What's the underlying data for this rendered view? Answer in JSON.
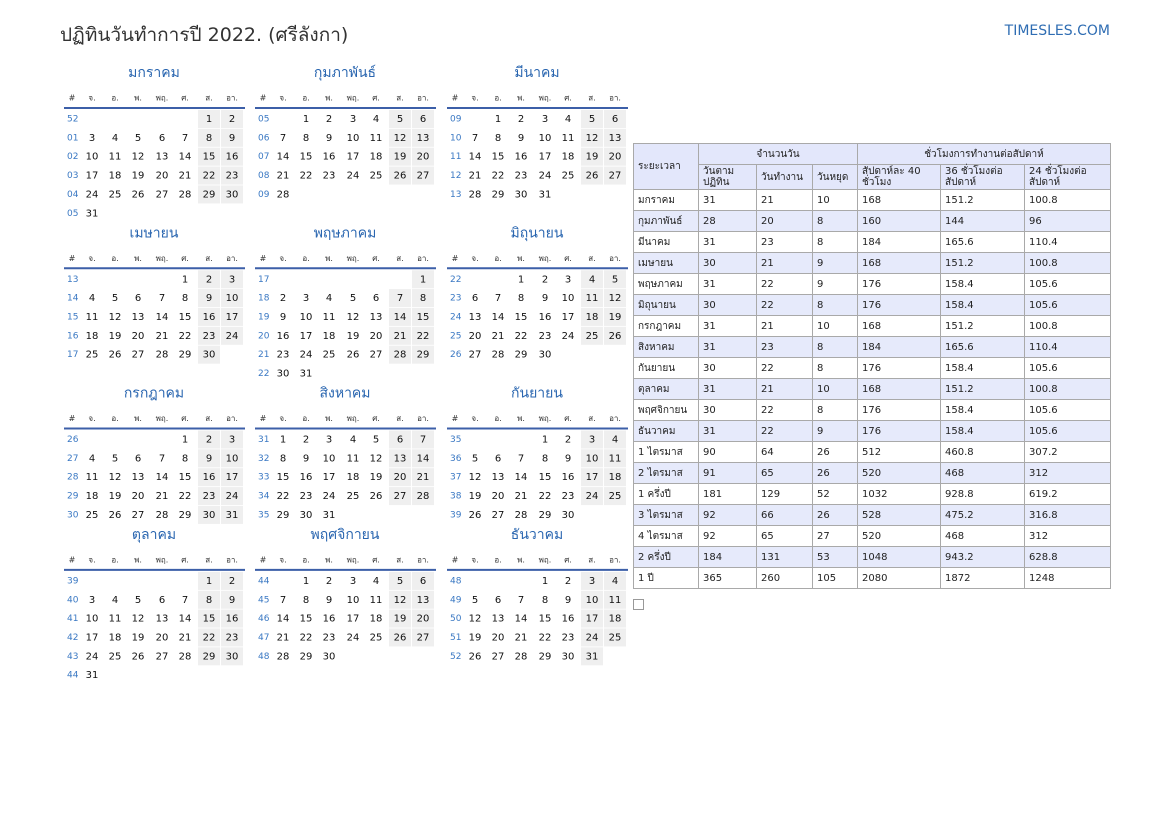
{
  "header": {
    "title": "ปฏิทินวันทำการปี 2022. (ศรีลังกา)",
    "site": "TIMESLES.COM"
  },
  "calendar": {
    "weekday_headers": [
      "#",
      "จ.",
      "อ.",
      "พ.",
      "พฤ.",
      "ศ.",
      "ส.",
      "อา."
    ],
    "months": [
      {
        "name": "มกราคม",
        "weeks": [
          [
            "52",
            null,
            null,
            null,
            null,
            null,
            1,
            2
          ],
          [
            "01",
            3,
            4,
            5,
            6,
            7,
            8,
            9
          ],
          [
            "02",
            10,
            11,
            12,
            13,
            14,
            15,
            16
          ],
          [
            "03",
            17,
            18,
            19,
            20,
            21,
            22,
            23
          ],
          [
            "04",
            24,
            25,
            26,
            27,
            28,
            29,
            30
          ],
          [
            "05",
            31,
            null,
            null,
            null,
            null,
            null,
            null
          ]
        ]
      },
      {
        "name": "กุมภาพันธ์",
        "weeks": [
          [
            "05",
            null,
            1,
            2,
            3,
            4,
            5,
            6
          ],
          [
            "06",
            7,
            8,
            9,
            10,
            11,
            12,
            13
          ],
          [
            "07",
            14,
            15,
            16,
            17,
            18,
            19,
            20
          ],
          [
            "08",
            21,
            22,
            23,
            24,
            25,
            26,
            27
          ],
          [
            "09",
            28,
            null,
            null,
            null,
            null,
            null,
            null
          ]
        ]
      },
      {
        "name": "มีนาคม",
        "weeks": [
          [
            "09",
            null,
            1,
            2,
            3,
            4,
            5,
            6
          ],
          [
            "10",
            7,
            8,
            9,
            10,
            11,
            12,
            13
          ],
          [
            "11",
            14,
            15,
            16,
            17,
            18,
            19,
            20
          ],
          [
            "12",
            21,
            22,
            23,
            24,
            25,
            26,
            27
          ],
          [
            "13",
            28,
            29,
            30,
            31,
            null,
            null,
            null
          ]
        ]
      },
      {
        "name": "เมษายน",
        "weeks": [
          [
            "13",
            null,
            null,
            null,
            null,
            1,
            2,
            3
          ],
          [
            "14",
            4,
            5,
            6,
            7,
            8,
            9,
            10
          ],
          [
            "15",
            11,
            12,
            13,
            14,
            15,
            16,
            17
          ],
          [
            "16",
            18,
            19,
            20,
            21,
            22,
            23,
            24
          ],
          [
            "17",
            25,
            26,
            27,
            28,
            29,
            30,
            null
          ]
        ]
      },
      {
        "name": "พฤษภาคม",
        "weeks": [
          [
            "17",
            null,
            null,
            null,
            null,
            null,
            null,
            1
          ],
          [
            "18",
            2,
            3,
            4,
            5,
            6,
            7,
            8
          ],
          [
            "19",
            9,
            10,
            11,
            12,
            13,
            14,
            15
          ],
          [
            "20",
            16,
            17,
            18,
            19,
            20,
            21,
            22
          ],
          [
            "21",
            23,
            24,
            25,
            26,
            27,
            28,
            29
          ],
          [
            "22",
            30,
            31,
            null,
            null,
            null,
            null,
            null
          ]
        ]
      },
      {
        "name": "มิถุนายน",
        "weeks": [
          [
            "22",
            null,
            null,
            1,
            2,
            3,
            4,
            5
          ],
          [
            "23",
            6,
            7,
            8,
            9,
            10,
            11,
            12
          ],
          [
            "24",
            13,
            14,
            15,
            16,
            17,
            18,
            19
          ],
          [
            "25",
            20,
            21,
            22,
            23,
            24,
            25,
            26
          ],
          [
            "26",
            27,
            28,
            29,
            30,
            null,
            null,
            null
          ]
        ]
      },
      {
        "name": "กรกฎาคม",
        "weeks": [
          [
            "26",
            null,
            null,
            null,
            null,
            1,
            2,
            3
          ],
          [
            "27",
            4,
            5,
            6,
            7,
            8,
            9,
            10
          ],
          [
            "28",
            11,
            12,
            13,
            14,
            15,
            16,
            17
          ],
          [
            "29",
            18,
            19,
            20,
            21,
            22,
            23,
            24
          ],
          [
            "30",
            25,
            26,
            27,
            28,
            29,
            30,
            31
          ]
        ]
      },
      {
        "name": "สิงหาคม",
        "weeks": [
          [
            "31",
            1,
            2,
            3,
            4,
            5,
            6,
            7
          ],
          [
            "32",
            8,
            9,
            10,
            11,
            12,
            13,
            14
          ],
          [
            "33",
            15,
            16,
            17,
            18,
            19,
            20,
            21
          ],
          [
            "34",
            22,
            23,
            24,
            25,
            26,
            27,
            28
          ],
          [
            "35",
            29,
            30,
            31,
            null,
            null,
            null,
            null
          ]
        ]
      },
      {
        "name": "กันยายน",
        "weeks": [
          [
            "35",
            null,
            null,
            null,
            1,
            2,
            3,
            4
          ],
          [
            "36",
            5,
            6,
            7,
            8,
            9,
            10,
            11
          ],
          [
            "37",
            12,
            13,
            14,
            15,
            16,
            17,
            18
          ],
          [
            "38",
            19,
            20,
            21,
            22,
            23,
            24,
            25
          ],
          [
            "39",
            26,
            27,
            28,
            29,
            30,
            null,
            null
          ]
        ]
      },
      {
        "name": "ตุลาคม",
        "weeks": [
          [
            "39",
            null,
            null,
            null,
            null,
            null,
            1,
            2
          ],
          [
            "40",
            3,
            4,
            5,
            6,
            7,
            8,
            9
          ],
          [
            "41",
            10,
            11,
            12,
            13,
            14,
            15,
            16
          ],
          [
            "42",
            17,
            18,
            19,
            20,
            21,
            22,
            23
          ],
          [
            "43",
            24,
            25,
            26,
            27,
            28,
            29,
            30
          ],
          [
            "44",
            31,
            null,
            null,
            null,
            null,
            null,
            null
          ]
        ]
      },
      {
        "name": "พฤศจิกายน",
        "weeks": [
          [
            "44",
            null,
            1,
            2,
            3,
            4,
            5,
            6
          ],
          [
            "45",
            7,
            8,
            9,
            10,
            11,
            12,
            13
          ],
          [
            "46",
            14,
            15,
            16,
            17,
            18,
            19,
            20
          ],
          [
            "47",
            21,
            22,
            23,
            24,
            25,
            26,
            27
          ],
          [
            "48",
            28,
            29,
            30,
            null,
            null,
            null,
            null
          ]
        ]
      },
      {
        "name": "ธันวาคม",
        "weeks": [
          [
            "48",
            null,
            null,
            null,
            1,
            2,
            3,
            4
          ],
          [
            "49",
            5,
            6,
            7,
            8,
            9,
            10,
            11
          ],
          [
            "50",
            12,
            13,
            14,
            15,
            16,
            17,
            18
          ],
          [
            "51",
            19,
            20,
            21,
            22,
            23,
            24,
            25
          ],
          [
            "52",
            26,
            27,
            28,
            29,
            30,
            31,
            null
          ]
        ]
      }
    ]
  },
  "table": {
    "period": "ระยะเวลา",
    "group_days": "จำนวนวัน",
    "group_hours": "ชั่วโมงการทำงานต่อสัปดาห์",
    "columns": [
      "วันตาม ปฏิทิน",
      "วันทำงาน",
      "วันหยุด",
      "สัปดาห์ละ 40 ชั่วโมง",
      "36 ชั่วโมงต่อ สัปดาห์",
      "24 ชั่วโมงต่อ สัปดาห์"
    ],
    "rows": [
      [
        "มกราคม",
        31,
        21,
        10,
        168,
        151.2,
        100.8
      ],
      [
        "กุมภาพันธ์",
        28,
        20,
        8,
        160,
        144,
        96
      ],
      [
        "มีนาคม",
        31,
        23,
        8,
        184,
        165.6,
        110.4
      ],
      [
        "เมษายน",
        30,
        21,
        9,
        168,
        151.2,
        100.8
      ],
      [
        "พฤษภาคม",
        31,
        22,
        9,
        176,
        158.4,
        105.6
      ],
      [
        "มิถุนายน",
        30,
        22,
        8,
        176,
        158.4,
        105.6
      ],
      [
        "กรกฎาคม",
        31,
        21,
        10,
        168,
        151.2,
        100.8
      ],
      [
        "สิงหาคม",
        31,
        23,
        8,
        184,
        165.6,
        110.4
      ],
      [
        "กันยายน",
        30,
        22,
        8,
        176,
        158.4,
        105.6
      ],
      [
        "ตุลาคม",
        31,
        21,
        10,
        168,
        151.2,
        100.8
      ],
      [
        "พฤศจิกายน",
        30,
        22,
        8,
        176,
        158.4,
        105.6
      ],
      [
        "ธันวาคม",
        31,
        22,
        9,
        176,
        158.4,
        105.6
      ],
      [
        "1 ไตรมาส",
        90,
        64,
        26,
        512,
        460.8,
        307.2
      ],
      [
        "2 ไตรมาส",
        91,
        65,
        26,
        520,
        468,
        312
      ],
      [
        "1 ครึ่งปี",
        181,
        129,
        52,
        1032,
        928.8,
        619.2
      ],
      [
        "3 ไตรมาส",
        92,
        66,
        26,
        528,
        475.2,
        316.8
      ],
      [
        "4 ไตรมาส",
        92,
        65,
        27,
        520,
        468,
        312
      ],
      [
        "2 ครึ่งปี",
        184,
        131,
        53,
        1048,
        943.2,
        628.8
      ],
      [
        "1 ปี",
        365,
        260,
        105,
        2080,
        1872,
        1248
      ]
    ]
  }
}
